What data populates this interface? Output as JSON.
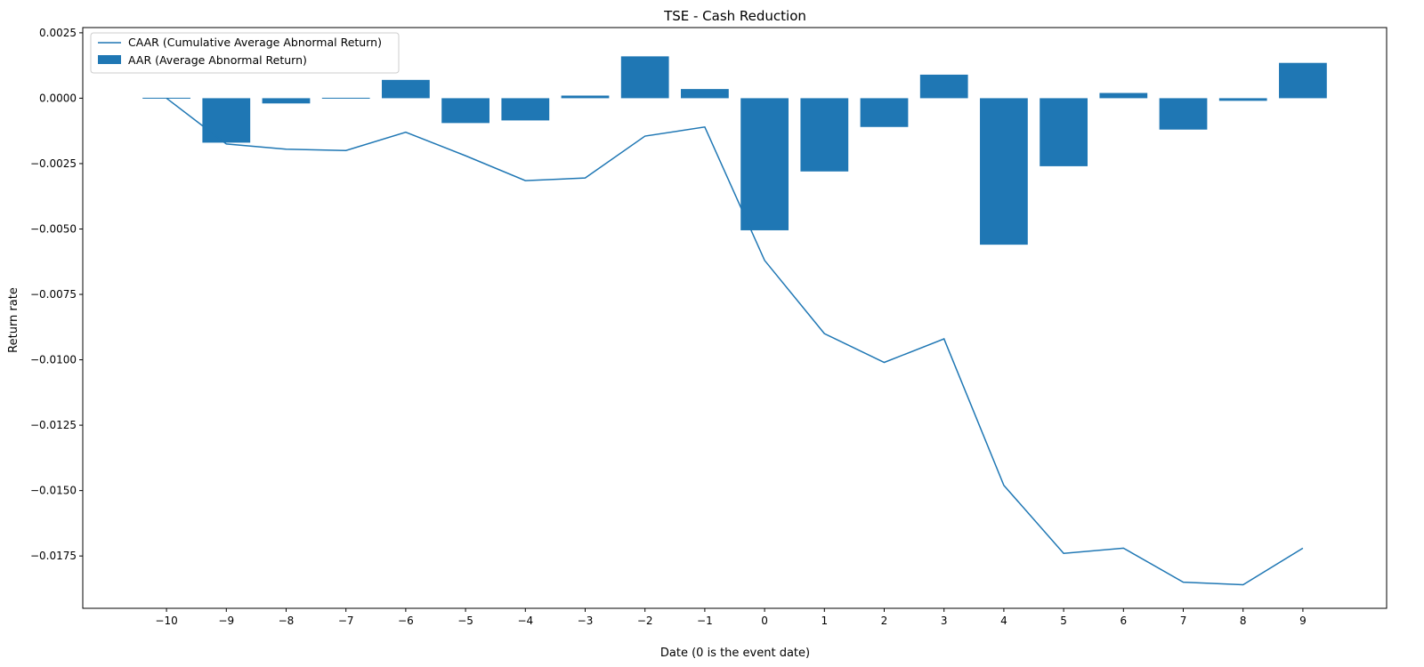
{
  "chart_data": {
    "type": "bar",
    "title": "TSE - Cash Reduction",
    "xlabel": "Date (0 is the event date)",
    "ylabel": "Return rate",
    "categories": [
      -10,
      -9,
      -8,
      -7,
      -6,
      -5,
      -4,
      -3,
      -2,
      -1,
      0,
      1,
      2,
      3,
      4,
      5,
      6,
      7,
      8,
      9
    ],
    "x_tick_labels": [
      "−10",
      "−9",
      "−8",
      "−7",
      "−6",
      "−5",
      "−4",
      "−3",
      "−2",
      "−1",
      "0",
      "1",
      "2",
      "3",
      "4",
      "5",
      "6",
      "7",
      "8",
      "9"
    ],
    "y_ticks": [
      0.0025,
      0.0,
      -0.0025,
      -0.005,
      -0.0075,
      -0.01,
      -0.0125,
      -0.015,
      -0.0175
    ],
    "y_tick_labels": [
      "0.0025",
      "0.0000",
      "−0.0025",
      "−0.0050",
      "−0.0075",
      "−0.0100",
      "−0.0125",
      "−0.0150",
      "−0.0175"
    ],
    "ylim": [
      -0.0195,
      0.0027
    ],
    "xlim": [
      -11.4,
      10.4
    ],
    "grid": false,
    "legend_position": "top-left",
    "series": [
      {
        "name": "CAAR (Cumulative Average Abnormal Return)",
        "kind": "line",
        "color": "#1f77b4",
        "values": [
          0.0,
          -0.00175,
          -0.00195,
          -0.002,
          -0.0013,
          -0.0022,
          -0.00315,
          -0.00305,
          -0.00145,
          -0.0011,
          -0.0062,
          -0.009,
          -0.0101,
          -0.0092,
          -0.0148,
          -0.0174,
          -0.0172,
          -0.0185,
          -0.0186,
          -0.0172
        ]
      },
      {
        "name": "AAR (Average Abnormal Return)",
        "kind": "bar",
        "color": "#1f77b4",
        "values": [
          0.0,
          -0.0017,
          -0.0002,
          -3e-05,
          0.0007,
          -0.00095,
          -0.00085,
          0.0001,
          0.0016,
          0.00035,
          -0.00505,
          -0.0028,
          -0.0011,
          0.0009,
          -0.0056,
          -0.0026,
          0.0002,
          -0.0012,
          -0.0001,
          0.00135
        ]
      }
    ]
  }
}
